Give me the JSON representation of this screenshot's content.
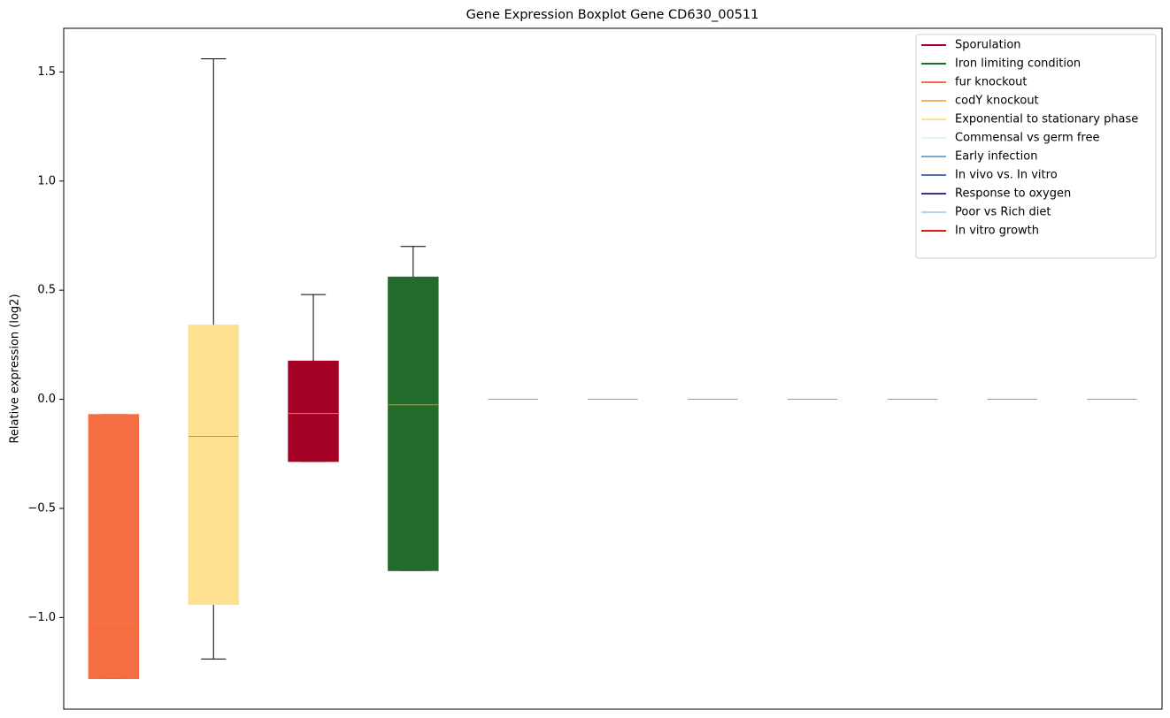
{
  "chart_data": {
    "type": "box",
    "title": "Gene Expression Boxplot Gene CD630_00511",
    "y_label": "Relative expression (log2)",
    "ylim": [
      -1.42,
      1.7
    ],
    "yticks": [
      {
        "value": -1.0,
        "label": "−1.0"
      },
      {
        "value": -0.5,
        "label": "−0.5"
      },
      {
        "value": 0,
        "label": "0.0"
      },
      0.5,
      {
        "value": 1.0,
        "label": "1.0"
      },
      1.5
    ],
    "median_color": "#ff7f0e",
    "whisker_color": "#000000",
    "legend": {
      "position": "upper right",
      "entries": [
        {
          "name": "Sporulation",
          "color": "#a50026"
        },
        {
          "name": "Iron limiting condition",
          "color": "#1a7030"
        },
        {
          "name": "fur knockout",
          "color": "#f46d43"
        },
        {
          "name": "codY knockout",
          "color": "#fdae61"
        },
        {
          "name": "Exponential to stationary phase",
          "color": "#fee090"
        },
        {
          "name": "Commensal vs germ free",
          "color": "#e0f3f8"
        },
        {
          "name": "Early infection",
          "color": "#74add1"
        },
        {
          "name": "In vivo vs. In vitro",
          "color": "#4575b4"
        },
        {
          "name": "Response to oxygen",
          "color": "#313695"
        },
        {
          "name": "Poor vs Rich diet",
          "color": "#abd9e9"
        },
        {
          "name": "In vitro growth",
          "color": "#e31a1c"
        }
      ]
    },
    "boxes": [
      {
        "color": "#f46d43",
        "whislo": -1.28,
        "q1": -1.28,
        "med": -1.03,
        "q3": -0.07,
        "whishi": -0.07
      },
      {
        "color": "#fee090",
        "whislo": -1.19,
        "q1": -0.94,
        "med": -0.17,
        "q3": 0.34,
        "whishi": 1.56
      },
      {
        "color": "#a50026",
        "whislo": -0.285,
        "q1": -0.285,
        "med": -0.065,
        "q3": 0.175,
        "whishi": 0.48
      },
      {
        "color": "#236b2b",
        "whislo": -0.785,
        "q1": -0.785,
        "med": -0.025,
        "q3": 0.56,
        "whishi": 0.7
      },
      {
        "whislo": 0,
        "q1": 0,
        "med": 0,
        "q3": 0,
        "whishi": 0
      },
      {
        "whislo": 0,
        "q1": 0,
        "med": 0,
        "q3": 0,
        "whishi": 0
      },
      {
        "whislo": 0,
        "q1": 0,
        "med": 0,
        "q3": 0,
        "whishi": 0
      },
      {
        "whislo": 0,
        "q1": 0,
        "med": 0,
        "q3": 0,
        "whishi": 0
      },
      {
        "whislo": 0,
        "q1": 0,
        "med": 0,
        "q3": 0,
        "whishi": 0
      },
      {
        "whislo": 0,
        "q1": 0,
        "med": 0,
        "q3": 0,
        "whishi": 0
      },
      {
        "whislo": 0,
        "q1": 0,
        "med": 0,
        "q3": 0,
        "whishi": 0
      }
    ]
  }
}
